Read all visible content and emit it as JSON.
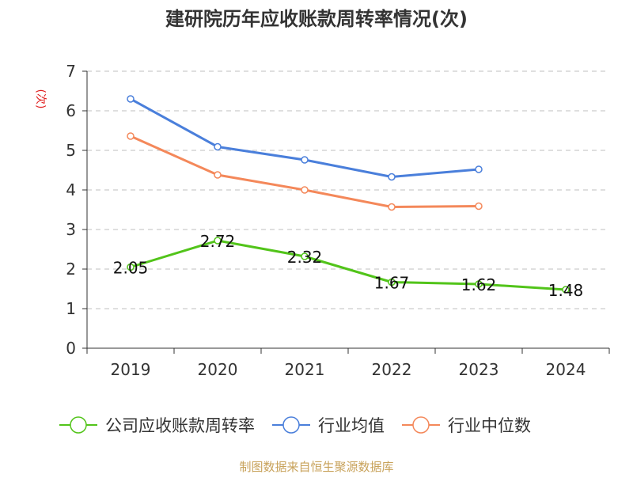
{
  "chart_data": {
    "type": "line",
    "title": "建研院历年应收账款周转率情况(次)",
    "ylabel": "(次)",
    "xlabel": "",
    "categories": [
      "2019",
      "2020",
      "2021",
      "2022",
      "2023",
      "2024"
    ],
    "ylim": [
      0,
      7
    ],
    "yticks": [
      "0",
      "1",
      "2",
      "3",
      "4",
      "5",
      "6",
      "7"
    ],
    "grid": true,
    "legend_position": "bottom",
    "series": [
      {
        "name": "公司应收账款周转率",
        "color": "#52c41a",
        "values": [
          2.05,
          2.72,
          2.32,
          1.67,
          1.62,
          1.48
        ],
        "labels": [
          "2.05",
          "2.72",
          "2.32",
          "1.67",
          "1.62",
          "1.48"
        ]
      },
      {
        "name": "行业均值",
        "color": "#4a7fdb",
        "values": [
          6.3,
          5.09,
          4.76,
          4.33,
          4.52,
          null
        ]
      },
      {
        "name": "行业中位数",
        "color": "#f4885a",
        "values": [
          5.36,
          4.38,
          4.0,
          3.57,
          3.59,
          null
        ]
      }
    ],
    "source": "制图数据来自恒生聚源数据库"
  }
}
